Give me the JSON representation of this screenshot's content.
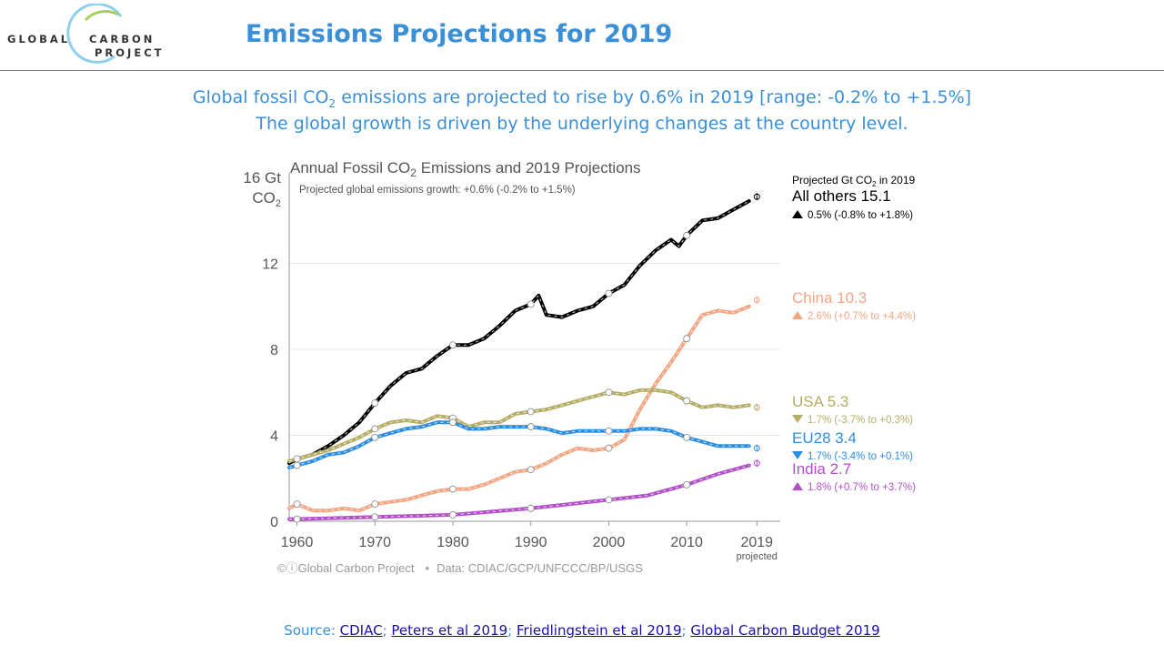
{
  "header": {
    "logo_line1_left": "GLOBAL",
    "logo_line1_right": "CARBON",
    "logo_line2": "PROJECT",
    "title": "Emissions Projections for 2019"
  },
  "subtitle": {
    "line1_pre": "Global fossil CO",
    "line1_sub": "2",
    "line1_post": " emissions are projected to rise by 0.6% in 2019 [range: -0.2% to +1.5%]",
    "line2": "The global growth is driven by the underlying changes at the country level."
  },
  "source": {
    "prefix": "Source: ",
    "links": [
      "CDIAC",
      "Peters et al 2019",
      "Friedlingstein et al 2019",
      "Global Carbon Budget 2019"
    ],
    "separator": "; "
  },
  "chart_data": {
    "type": "line",
    "title_pre": "Annual Fossil CO",
    "title_sub": "2",
    "title_post": " Emissions and 2019 Projections",
    "note": "Projected global emissions growth: +0.6% (-0.2% to +1.5%)",
    "ylabel_line1": "16 Gt",
    "ylabel_line2_pre": "CO",
    "ylabel_line2_sub": "2",
    "yticks": [
      0,
      4,
      8,
      12
    ],
    "xticks": [
      "1960",
      "1970",
      "1980",
      "1990",
      "2000",
      "2010",
      "2019"
    ],
    "xtick_note": "projected",
    "ylim": [
      0,
      16
    ],
    "xlim": [
      1959,
      2022
    ],
    "credit": "Global Carbon Project",
    "credit_icons": "©ⓘ",
    "data_source": "Data: CDIAC/GCP/UNFCCC/BP/USGS",
    "legend_title_pre": "Projected Gt CO",
    "legend_title_sub": "2",
    "legend_title_post": " in 2019",
    "series": [
      {
        "name": "All others",
        "value_2019": "15.1",
        "label": "All others 15.1",
        "change": "0.5% (-0.8% to +1.8%)",
        "direction": "up",
        "color": "#000000",
        "x": [
          1959,
          1960,
          1962,
          1964,
          1966,
          1968,
          1970,
          1972,
          1974,
          1976,
          1978,
          1980,
          1982,
          1984,
          1986,
          1988,
          1990,
          1991,
          1992,
          1994,
          1996,
          1998,
          2000,
          2002,
          2004,
          2006,
          2008,
          2009,
          2010,
          2012,
          2014,
          2016,
          2018
        ],
        "y": [
          2.7,
          2.9,
          3.1,
          3.5,
          4.0,
          4.6,
          5.5,
          6.3,
          6.9,
          7.1,
          7.7,
          8.2,
          8.2,
          8.5,
          9.1,
          9.8,
          10.1,
          10.5,
          9.6,
          9.5,
          9.8,
          10.0,
          10.6,
          11.0,
          11.9,
          12.6,
          13.1,
          12.8,
          13.3,
          14.0,
          14.1,
          14.5,
          14.9
        ]
      },
      {
        "name": "China",
        "value_2019": "10.3",
        "label": "China 10.3",
        "change": "2.6% (+0.7% to +4.4%)",
        "direction": "up",
        "color": "#f4a582",
        "x": [
          1959,
          1960,
          1962,
          1964,
          1966,
          1968,
          1970,
          1972,
          1974,
          1976,
          1978,
          1980,
          1982,
          1984,
          1986,
          1988,
          1990,
          1992,
          1994,
          1996,
          1998,
          2000,
          2002,
          2004,
          2006,
          2008,
          2010,
          2012,
          2014,
          2016,
          2018
        ],
        "y": [
          0.6,
          0.8,
          0.5,
          0.5,
          0.6,
          0.5,
          0.8,
          0.9,
          1.0,
          1.2,
          1.4,
          1.5,
          1.5,
          1.7,
          2.0,
          2.3,
          2.4,
          2.7,
          3.1,
          3.4,
          3.3,
          3.4,
          3.8,
          5.2,
          6.4,
          7.4,
          8.5,
          9.6,
          9.8,
          9.7,
          10.0
        ]
      },
      {
        "name": "USA",
        "value_2019": "5.3",
        "label": "USA 5.3",
        "change": "1.7% (-3.7% to +0.3%)",
        "direction": "down",
        "color": "#b5ad66",
        "x": [
          1959,
          1960,
          1962,
          1964,
          1966,
          1968,
          1970,
          1972,
          1974,
          1976,
          1978,
          1980,
          1982,
          1984,
          1986,
          1988,
          1990,
          1992,
          1994,
          1996,
          1998,
          2000,
          2002,
          2004,
          2006,
          2008,
          2010,
          2012,
          2014,
          2016,
          2018
        ],
        "y": [
          2.8,
          2.9,
          3.1,
          3.3,
          3.6,
          3.9,
          4.3,
          4.6,
          4.7,
          4.6,
          4.9,
          4.8,
          4.4,
          4.6,
          4.6,
          5.0,
          5.1,
          5.2,
          5.4,
          5.6,
          5.8,
          6.0,
          5.9,
          6.1,
          6.1,
          6.0,
          5.6,
          5.3,
          5.4,
          5.3,
          5.4
        ]
      },
      {
        "name": "EU28",
        "value_2019": "3.4",
        "label": "EU28 3.4",
        "change": "1.7% (-3.4% to +0.1%)",
        "direction": "down",
        "color": "#2c8de0",
        "x": [
          1959,
          1960,
          1962,
          1964,
          1966,
          1968,
          1970,
          1972,
          1974,
          1976,
          1978,
          1980,
          1982,
          1984,
          1986,
          1988,
          1990,
          1992,
          1994,
          1996,
          1998,
          2000,
          2002,
          2004,
          2006,
          2008,
          2010,
          2012,
          2014,
          2016,
          2018
        ],
        "y": [
          2.5,
          2.6,
          2.8,
          3.1,
          3.2,
          3.5,
          3.9,
          4.1,
          4.3,
          4.4,
          4.6,
          4.6,
          4.3,
          4.3,
          4.4,
          4.4,
          4.4,
          4.3,
          4.1,
          4.2,
          4.2,
          4.2,
          4.2,
          4.3,
          4.3,
          4.2,
          3.9,
          3.7,
          3.5,
          3.5,
          3.5
        ]
      },
      {
        "name": "India",
        "value_2019": "2.7",
        "label": "India 2.7",
        "change": "1.8% (+0.7% to +3.7%)",
        "direction": "up",
        "color": "#b24fc9",
        "x": [
          1959,
          1960,
          1965,
          1970,
          1975,
          1980,
          1985,
          1990,
          1995,
          2000,
          2005,
          2010,
          2012,
          2014,
          2016,
          2018
        ],
        "y": [
          0.1,
          0.1,
          0.15,
          0.2,
          0.25,
          0.3,
          0.45,
          0.6,
          0.8,
          1.0,
          1.2,
          1.7,
          1.95,
          2.2,
          2.4,
          2.6
        ]
      }
    ],
    "projections_2019": [
      15.1,
      10.3,
      5.3,
      3.4,
      2.7
    ],
    "marked_years": [
      1960,
      1970,
      1980,
      1990,
      2000,
      2010,
      2019
    ]
  }
}
